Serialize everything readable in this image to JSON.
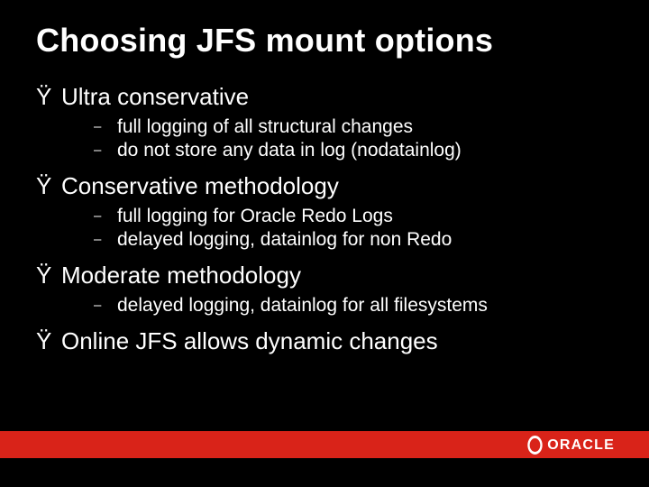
{
  "slide": {
    "title": "Choosing JFS mount options",
    "bullet_glyph": "Ÿ",
    "dash_glyph": "–",
    "sections": [
      {
        "heading": "Ultra conservative",
        "items": [
          "full logging of all structural changes",
          "do not store any data in log (nodatainlog)"
        ]
      },
      {
        "heading": "Conservative methodology",
        "items": [
          "full logging for Oracle Redo Logs",
          "delayed logging, datainlog for non Redo"
        ]
      },
      {
        "heading": "Moderate methodology",
        "items": [
          "delayed logging, datainlog for all filesystems"
        ]
      },
      {
        "heading": "Online JFS allows dynamic changes",
        "items": []
      }
    ],
    "logo_text": "ORACLE",
    "colors": {
      "background": "#000000",
      "text": "#ffffff",
      "accent_bar": "#d92319"
    }
  }
}
